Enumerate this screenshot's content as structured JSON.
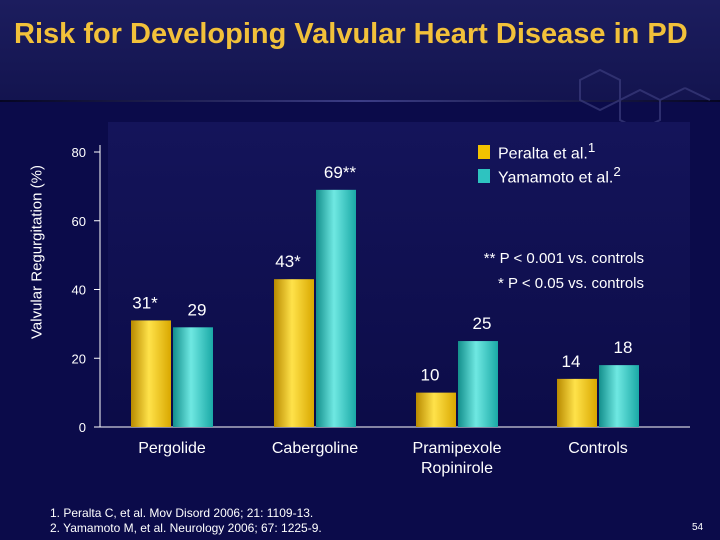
{
  "slide": {
    "title": "Risk for Developing Valvular Heart Disease in PD",
    "page_number": "54",
    "significance": [
      "** P < 0.001 vs. controls",
      "* P < 0.05  vs. controls"
    ],
    "references": [
      "1. Peralta C, et al. Mov Disord 2006; 21: 1109-13.",
      "2. Yamamoto M, et al. Neurology 2006; 67: 1225-9."
    ]
  },
  "legend": [
    {
      "label": "Peralta et al.",
      "sup": "1",
      "color": "#f2c200"
    },
    {
      "label": "Yamamoto et al.",
      "sup": "2",
      "color": "#2ec3c0"
    }
  ],
  "chart_data": {
    "type": "bar",
    "title": "",
    "xlabel": "",
    "ylabel": "Valvular Regurgitation (%)",
    "ylim": [
      0,
      80
    ],
    "yticks": [
      0,
      20,
      40,
      60,
      80
    ],
    "categories": [
      "Pergolide",
      "Cabergoline",
      "Pramipexole\nRopinirole",
      "Controls"
    ],
    "series": [
      {
        "name": "Peralta et al.",
        "values": [
          31,
          43,
          10,
          14
        ],
        "labels": [
          "31*",
          "43*",
          "10",
          "14"
        ],
        "color": "#f2c200"
      },
      {
        "name": "Yamamoto et al.",
        "values": [
          29,
          69,
          25,
          18
        ],
        "labels": [
          "29",
          "69**",
          "25",
          "18"
        ],
        "color": "#2ec3c0"
      }
    ],
    "grid": false,
    "legend_position": "top-right"
  }
}
